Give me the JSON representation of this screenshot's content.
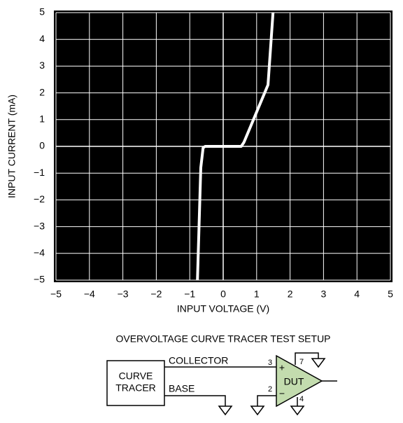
{
  "chart_data": {
    "type": "line",
    "x_label": "INPUT VOLTAGE (V)",
    "y_label": "INPUT CURRENT (mA)",
    "x": [
      -0.77,
      -0.67,
      -0.6,
      -0.54,
      0.54,
      0.62,
      1.34,
      1.49
    ],
    "values": [
      -5,
      -0.8,
      -0.05,
      0,
      0,
      0.15,
      2.3,
      5
    ],
    "color": "#ffffff",
    "background": "#000000",
    "grid": true,
    "xlim": [
      -5,
      5
    ],
    "ylim": [
      -5,
      5
    ],
    "xticks": [
      {
        "value": -5,
        "label": "−5"
      },
      {
        "value": -4,
        "label": "−4"
      },
      {
        "value": -3,
        "label": "−3"
      },
      {
        "value": -2,
        "label": "−2"
      },
      {
        "value": -1,
        "label": "−1"
      },
      0,
      1,
      2,
      3,
      4,
      5
    ],
    "yticks": [
      {
        "value": -5,
        "label": "−5"
      },
      {
        "value": -4,
        "label": "−4"
      },
      {
        "value": -3,
        "label": "−3"
      },
      {
        "value": -2,
        "label": "−2"
      },
      {
        "value": -1,
        "label": "−1"
      },
      0,
      1,
      2,
      3,
      4,
      5
    ]
  },
  "diagram": {
    "title": "OVERVOLTAGE CURVE TRACER TEST SETUP",
    "box_line1": "CURVE",
    "box_line2": "TRACER",
    "collector": "COLLECTOR",
    "base": "BASE",
    "pin3": "3",
    "pin7": "7",
    "pin2": "2",
    "pin4": "4",
    "plus": "+",
    "minus": "−",
    "dut": "DUT"
  }
}
